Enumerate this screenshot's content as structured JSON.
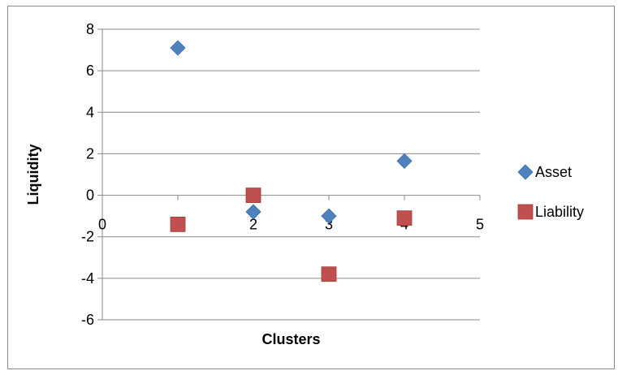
{
  "chart_data": {
    "type": "scatter",
    "title": "",
    "xlabel": "Clusters",
    "ylabel": "Liquidity",
    "xlim": [
      0,
      5
    ],
    "ylim": [
      -6,
      8
    ],
    "x_ticks": [
      0,
      1,
      2,
      3,
      4,
      5
    ],
    "y_ticks": [
      -6,
      -4,
      -2,
      0,
      2,
      4,
      6,
      8
    ],
    "grid": "horizontal major gridlines",
    "legend_position": "right",
    "series": [
      {
        "name": "Asset",
        "marker": "diamond",
        "color": "#4f81bd",
        "points": [
          {
            "x": 1,
            "y": 7.1
          },
          {
            "x": 2,
            "y": -0.8
          },
          {
            "x": 3,
            "y": -1.0
          },
          {
            "x": 4,
            "y": 1.65
          }
        ]
      },
      {
        "name": "Liability",
        "marker": "square",
        "color": "#c0504d",
        "points": [
          {
            "x": 1,
            "y": -1.4
          },
          {
            "x": 2,
            "y": 0.0
          },
          {
            "x": 3,
            "y": -3.8
          },
          {
            "x": 4,
            "y": -1.1
          }
        ]
      }
    ]
  }
}
